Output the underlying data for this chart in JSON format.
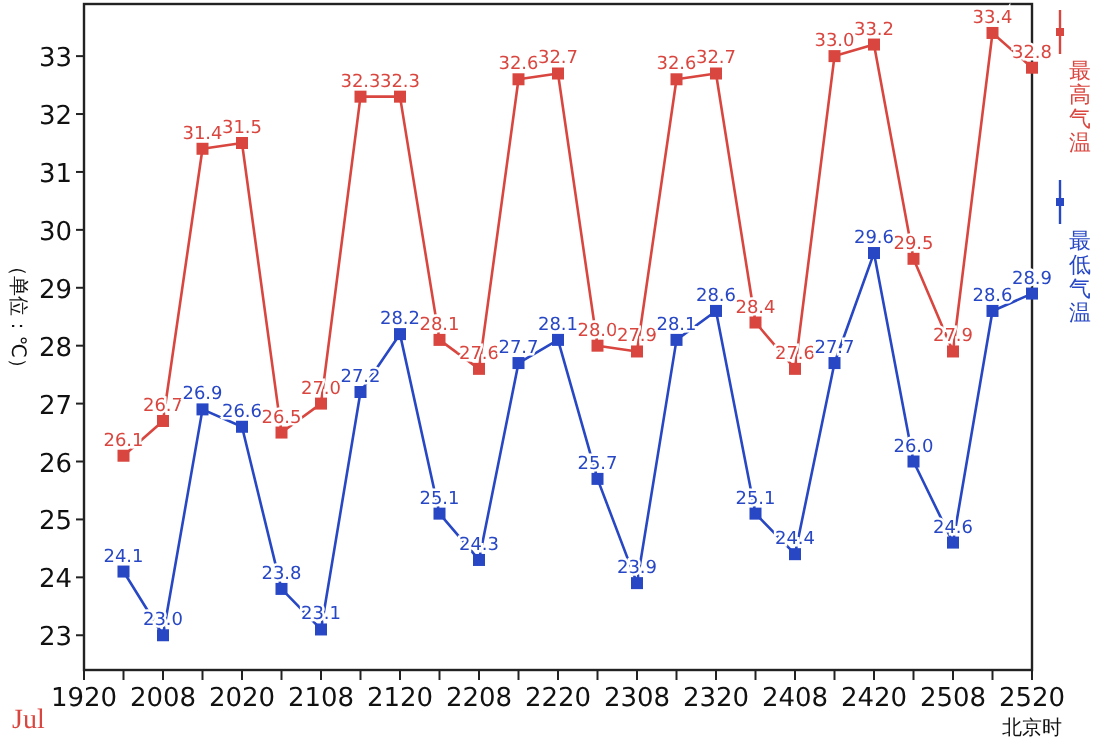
{
  "chart_data": {
    "type": "line",
    "ylabel": "（单位：℃）",
    "xlabel": "北京时",
    "categories": [
      "1920",
      null,
      "2008",
      null,
      "2020",
      null,
      "2108",
      null,
      "2120",
      null,
      "2208",
      null,
      "2220",
      null,
      "2308",
      null,
      "2320",
      null,
      "2408",
      null,
      "2420",
      null,
      "2508",
      null,
      "2520"
    ],
    "series": [
      {
        "name": "最高气温",
        "color": "#d9463f",
        "values": [
          null,
          26.1,
          26.7,
          31.4,
          31.5,
          26.5,
          27.0,
          32.3,
          32.3,
          28.1,
          27.6,
          32.6,
          32.7,
          28.0,
          27.9,
          32.6,
          32.7,
          28.4,
          27.6,
          33.0,
          33.2,
          29.5,
          27.9,
          33.4,
          32.8
        ],
        "value_labels": [
          null,
          "26.1",
          "26.7",
          "31.4",
          "31.5",
          "26.5",
          "27.0",
          "32.3",
          "32.3",
          "28.1",
          "27.6",
          "32.6",
          "32.7",
          "28.0",
          "27.9",
          "32.6",
          "32.7",
          "28.4",
          "27.6",
          "33.0",
          "33.2",
          "29.5",
          "27.9",
          "33.4",
          "32.8"
        ]
      },
      {
        "name": "最低气温",
        "color": "#2747c4",
        "values": [
          null,
          24.1,
          23.0,
          26.9,
          26.6,
          23.8,
          23.1,
          27.2,
          28.2,
          25.1,
          24.3,
          27.7,
          28.1,
          25.7,
          23.9,
          28.1,
          28.6,
          25.1,
          24.4,
          27.7,
          29.6,
          26.0,
          24.6,
          28.6,
          28.9
        ],
        "value_labels": [
          null,
          "24.1",
          "23.0",
          "26.9",
          "26.6",
          "23.8",
          "23.1",
          "27.2",
          "28.2",
          "25.1",
          "24.3",
          "27.7",
          "28.1",
          "25.7",
          "23.9",
          "28.1",
          "28.6",
          "25.1",
          "24.4",
          "27.7",
          "29.6",
          "26.0",
          "24.6",
          "28.6",
          "28.9"
        ]
      }
    ],
    "ylim": [
      22.4,
      33.9
    ],
    "yticks": [
      23,
      24,
      25,
      26,
      27,
      28,
      29,
      30,
      31,
      32,
      33
    ],
    "annotations": [
      "Jul"
    ],
    "marker": "square",
    "line_style": "solid",
    "grid": false,
    "legend": "right"
  }
}
